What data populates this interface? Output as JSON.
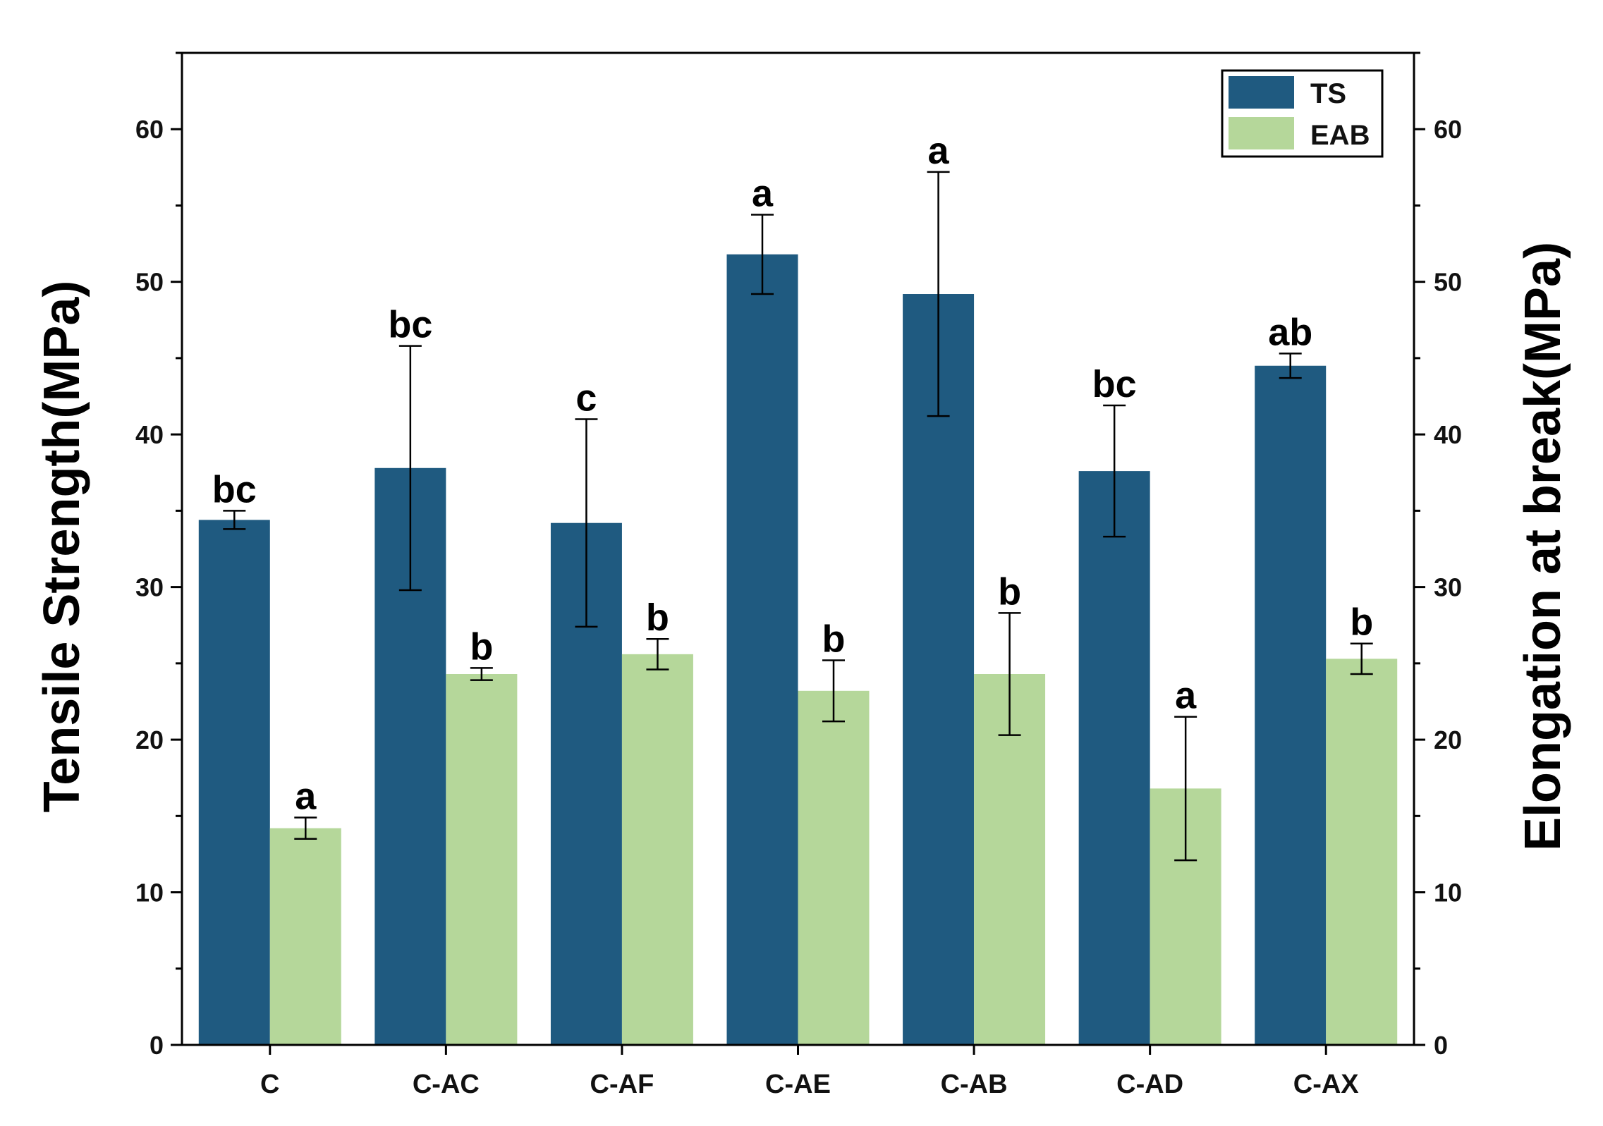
{
  "chart_data": {
    "type": "bar",
    "categories": [
      "C",
      "C-AC",
      "C-AF",
      "C-AE",
      "C-AB",
      "C-AD",
      "C-AX"
    ],
    "series": [
      {
        "name": "TS",
        "axis": "left",
        "color": "#1f5a80",
        "values": [
          34.4,
          37.8,
          34.2,
          51.8,
          49.2,
          37.6,
          44.5
        ],
        "errors": [
          0.6,
          8.0,
          6.8,
          2.6,
          8.0,
          4.3,
          0.8
        ],
        "letters": [
          "bc",
          "bc",
          "c",
          "a",
          "a",
          "bc",
          "ab"
        ]
      },
      {
        "name": "EAB",
        "axis": "right",
        "color": "#b5d79a",
        "values": [
          14.2,
          24.3,
          25.6,
          23.2,
          24.3,
          16.8,
          25.3
        ],
        "errors": [
          0.7,
          0.4,
          1.0,
          2.0,
          4.0,
          4.7,
          1.0
        ],
        "letters": [
          "a",
          "b",
          "b",
          "b",
          "b",
          "a",
          "b"
        ]
      }
    ],
    "ylabel": "Tensile Strength(MPa)",
    "y2label": "Elongation at break(MPa)",
    "ylim": [
      0,
      65
    ],
    "y2lim": [
      0,
      65
    ],
    "yticks": [
      0,
      10,
      20,
      30,
      40,
      50,
      60
    ],
    "legend_position": "top-right"
  }
}
